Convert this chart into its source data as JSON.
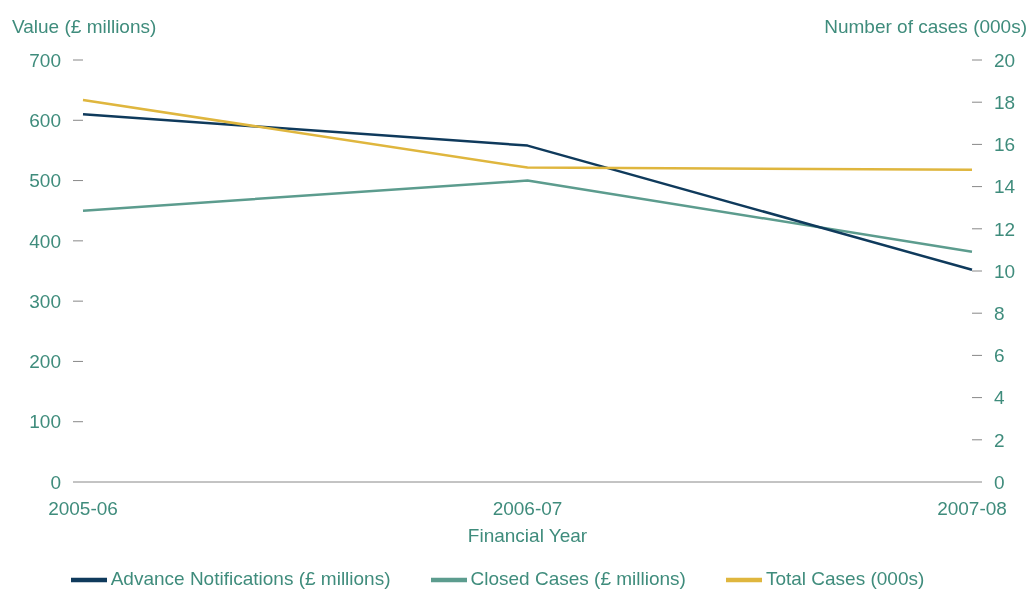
{
  "chart_data": {
    "type": "line",
    "xlabel": "Financial Year",
    "ylabel": "Value (£ millions)",
    "y2label": "Number of cases (000s)",
    "categories": [
      "2005-06",
      "2006-07",
      "2007-08"
    ],
    "series": [
      {
        "name": "Closed Cases (£ millions)",
        "color": "#5c9c8e",
        "values": [
          450,
          500,
          382
        ]
      },
      {
        "name": "Advance Notifications (£ millions)",
        "color": "#0f3a5c",
        "values": [
          610,
          558,
          352
        ]
      },
      {
        "name": "Total Cases (000s)",
        "color": "#dfb63e",
        "values": [
          18.1,
          14.9,
          14.8
        ],
        "axis": "y2"
      }
    ],
    "ylim": [
      0,
      700
    ],
    "yticks": [
      0,
      100,
      200,
      300,
      400,
      500,
      600,
      700
    ],
    "y2lim": [
      0,
      20
    ],
    "y2ticks": [
      0,
      2,
      4,
      6,
      8,
      10,
      12,
      14,
      16,
      18,
      20
    ],
    "grid": false,
    "legend": "bottom",
    "marker": "none",
    "line_style": "solid"
  }
}
